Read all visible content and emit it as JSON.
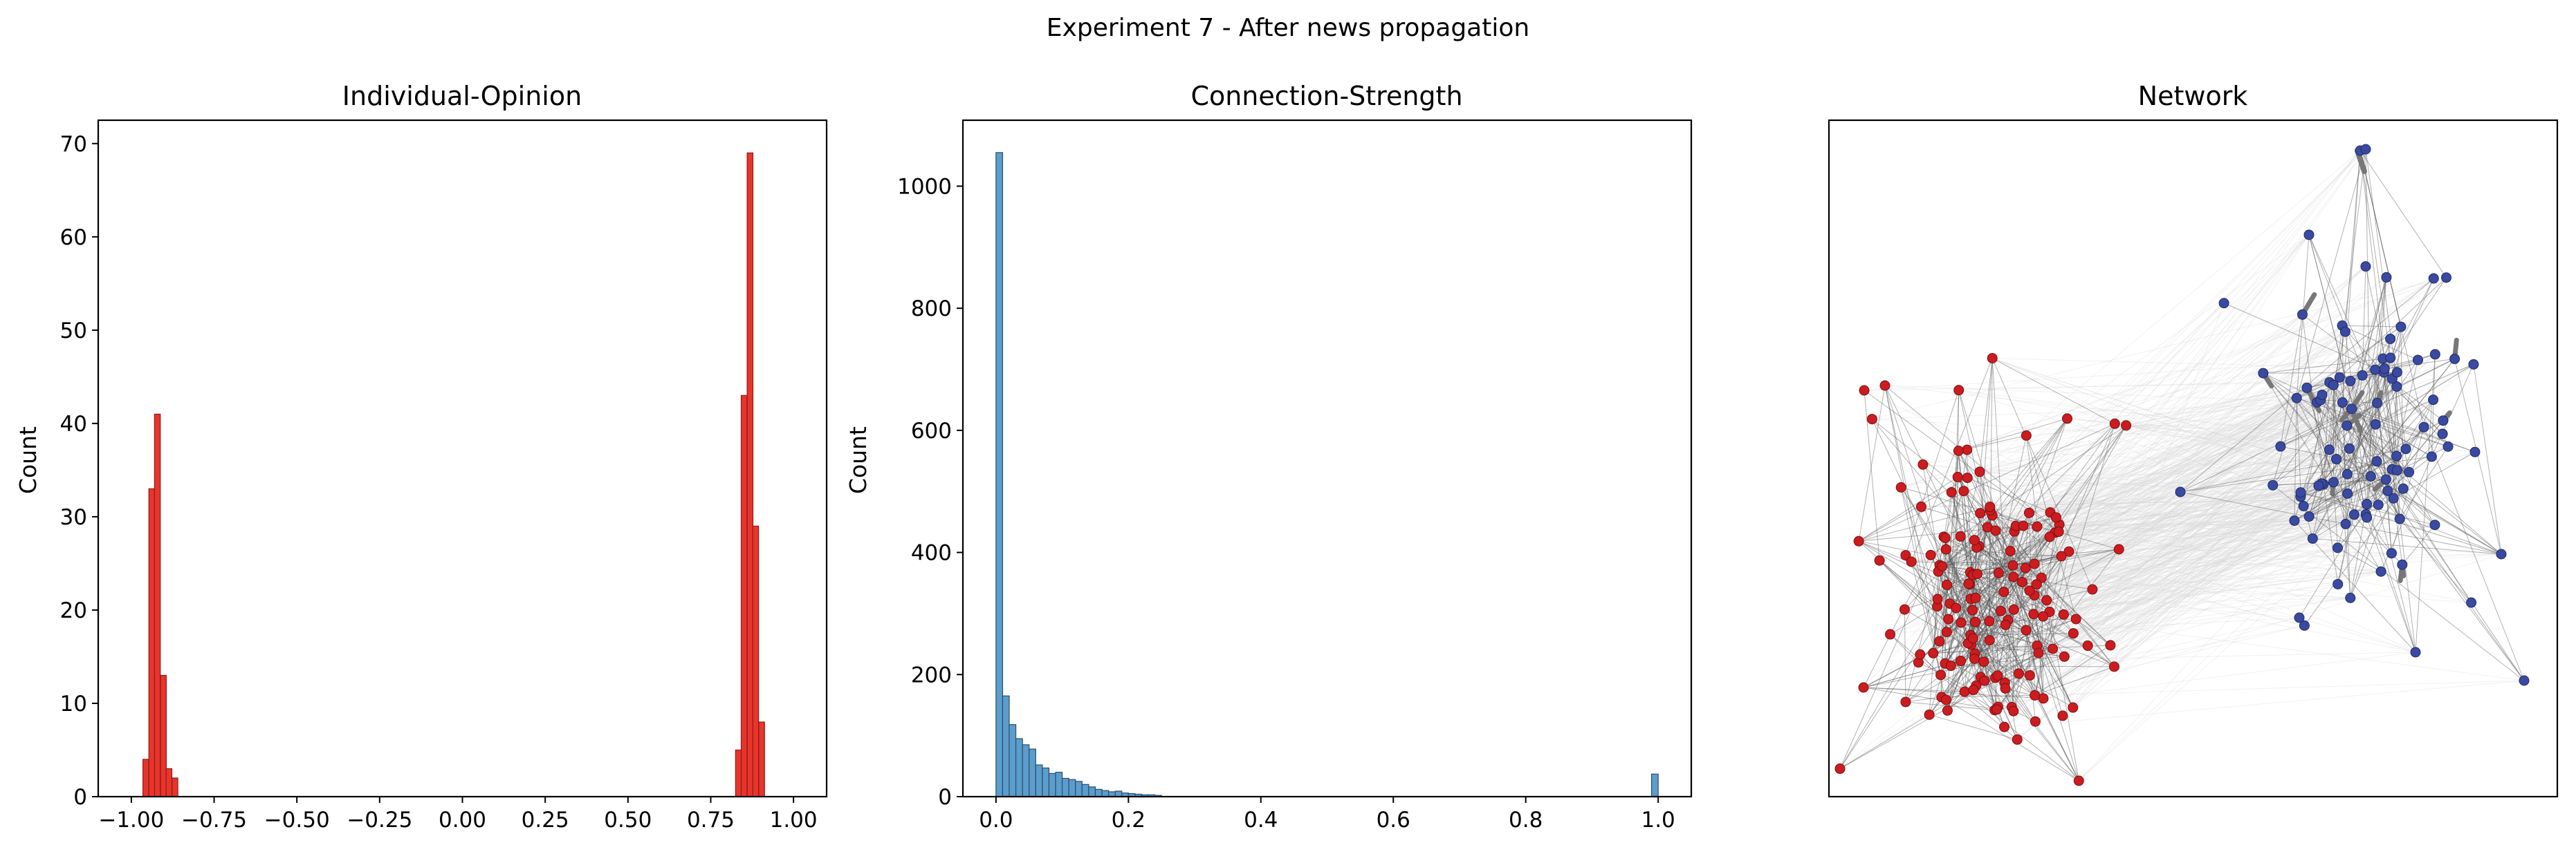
{
  "figure": {
    "suptitle": "Experiment 7 - After news propagation"
  },
  "colors": {
    "opinion_bar": "#e8352c",
    "opinion_edge": "#8a1d17",
    "strength_bar": "#5b9dcc",
    "strength_edge": "#2b4e6a",
    "node_red": "#cc1c1f",
    "node_blue": "#3a4aa0",
    "edge_faint": "#d8d8d8",
    "edge_dark": "#555555"
  },
  "chart_data": [
    {
      "type": "bar",
      "title": "Individual-Opinion",
      "xlabel": "",
      "ylabel": "Count",
      "xlim": [
        -1.1,
        1.1
      ],
      "ylim": [
        0,
        72.5
      ],
      "xticks": [
        "−1.00",
        "−0.75",
        "−0.50",
        "−0.25",
        "0.00",
        "0.25",
        "0.50",
        "0.75",
        "1.00"
      ],
      "xtick_values": [
        -1.0,
        -0.75,
        -0.5,
        -0.25,
        0.0,
        0.25,
        0.5,
        0.75,
        1.0
      ],
      "yticks": [
        "0",
        "10",
        "20",
        "30",
        "40",
        "50",
        "60",
        "70"
      ],
      "ytick_values": [
        0,
        10,
        20,
        30,
        40,
        50,
        60,
        70
      ],
      "bin_width": 0.0175,
      "bins": [
        {
          "x": -0.965,
          "count": 4
        },
        {
          "x": -0.947,
          "count": 33
        },
        {
          "x": -0.93,
          "count": 41
        },
        {
          "x": -0.912,
          "count": 13
        },
        {
          "x": -0.895,
          "count": 3
        },
        {
          "x": -0.877,
          "count": 2
        },
        {
          "x": 0.825,
          "count": 5
        },
        {
          "x": 0.842,
          "count": 43
        },
        {
          "x": 0.86,
          "count": 69
        },
        {
          "x": 0.877,
          "count": 29
        },
        {
          "x": 0.895,
          "count": 8
        }
      ]
    },
    {
      "type": "bar",
      "title": "Connection-Strength",
      "xlabel": "",
      "ylabel": "Count",
      "xlim": [
        -0.05,
        1.05
      ],
      "ylim": [
        0,
        1108
      ],
      "xticks": [
        "0.0",
        "0.2",
        "0.4",
        "0.6",
        "0.8",
        "1.0"
      ],
      "xtick_values": [
        0.0,
        0.2,
        0.4,
        0.6,
        0.8,
        1.0
      ],
      "yticks": [
        "0",
        "200",
        "400",
        "600",
        "800",
        "1000"
      ],
      "ytick_values": [
        0,
        200,
        400,
        600,
        800,
        1000
      ],
      "bin_width": 0.01,
      "bins": [
        {
          "x": 0.0,
          "count": 1055
        },
        {
          "x": 0.01,
          "count": 165
        },
        {
          "x": 0.02,
          "count": 118
        },
        {
          "x": 0.03,
          "count": 95
        },
        {
          "x": 0.04,
          "count": 85
        },
        {
          "x": 0.05,
          "count": 78
        },
        {
          "x": 0.06,
          "count": 52
        },
        {
          "x": 0.07,
          "count": 47
        },
        {
          "x": 0.08,
          "count": 38
        },
        {
          "x": 0.09,
          "count": 40
        },
        {
          "x": 0.1,
          "count": 30
        },
        {
          "x": 0.11,
          "count": 28
        },
        {
          "x": 0.12,
          "count": 25
        },
        {
          "x": 0.13,
          "count": 20
        },
        {
          "x": 0.14,
          "count": 16
        },
        {
          "x": 0.15,
          "count": 12
        },
        {
          "x": 0.16,
          "count": 10
        },
        {
          "x": 0.17,
          "count": 8
        },
        {
          "x": 0.18,
          "count": 9
        },
        {
          "x": 0.19,
          "count": 6
        },
        {
          "x": 0.2,
          "count": 5
        },
        {
          "x": 0.21,
          "count": 4
        },
        {
          "x": 0.22,
          "count": 3
        },
        {
          "x": 0.23,
          "count": 3
        },
        {
          "x": 0.24,
          "count": 2
        },
        {
          "x": 0.99,
          "count": 37
        }
      ]
    },
    {
      "type": "network",
      "title": "Network",
      "communities": [
        {
          "name": "",
          "color": "node_red",
          "size": 150
        },
        {
          "name": "",
          "color": "node_blue",
          "size": 90
        }
      ]
    }
  ]
}
